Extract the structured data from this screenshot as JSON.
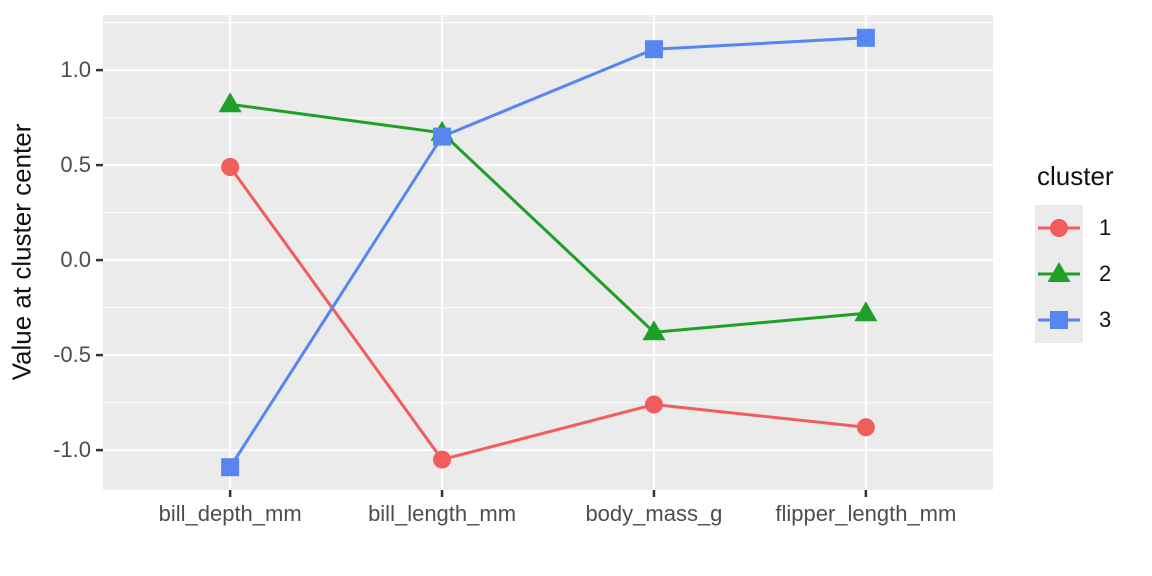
{
  "chart_data": {
    "type": "line",
    "title": "",
    "xlabel": "",
    "ylabel": "Value at cluster center",
    "categories": [
      "bill_depth_mm",
      "bill_length_mm",
      "body_mass_g",
      "flipper_length_mm"
    ],
    "series": [
      {
        "name": "1",
        "marker": "circle",
        "color": "#F15D5D",
        "values": [
          0.49,
          -1.05,
          -0.76,
          -0.88
        ]
      },
      {
        "name": "2",
        "marker": "triangle",
        "color": "#1EA028",
        "values": [
          0.82,
          0.67,
          -0.38,
          -0.28
        ]
      },
      {
        "name": "3",
        "marker": "square",
        "color": "#5786F0",
        "values": [
          -1.09,
          0.65,
          1.11,
          1.17
        ]
      }
    ],
    "y_ticks": [
      {
        "value": 1.0,
        "label": "1.0"
      },
      {
        "value": 0.5,
        "label": "0.5"
      },
      {
        "value": 0.0,
        "label": "0.0"
      },
      {
        "value": -0.5,
        "label": "-0.5"
      },
      {
        "value": -1.0,
        "label": "-1.0"
      }
    ],
    "y_minor_ticks": [
      1.25,
      0.75,
      0.25,
      -0.25,
      -0.75
    ],
    "ylim": [
      -1.21,
      1.29
    ],
    "grid": true,
    "legend": {
      "title": "cluster",
      "position": "right",
      "entries": [
        "1",
        "2",
        "3"
      ]
    },
    "colors": {
      "panel_bg": "#EBEBEB",
      "grid": "#FFFFFF",
      "axis_text": "#4D4D4D",
      "tick_mark": "#333333"
    }
  }
}
